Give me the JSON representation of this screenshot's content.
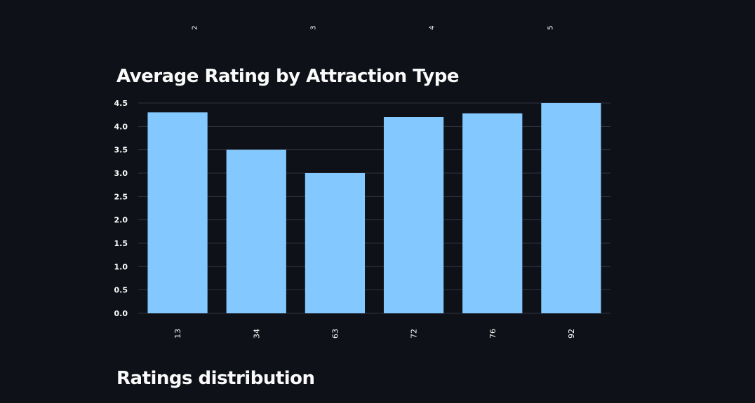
{
  "previous_chart": {
    "x_tick_labels": [
      "2",
      "3",
      "4",
      "5"
    ]
  },
  "headings": {
    "chart_title": "Average Rating by Attraction Type",
    "next_section": "Ratings distribution"
  },
  "chart_data": {
    "type": "bar",
    "categories": [
      "13",
      "34",
      "63",
      "72",
      "76",
      "92"
    ],
    "values": [
      4.3,
      3.5,
      3.0,
      4.2,
      4.28,
      4.5
    ],
    "title": "Average Rating by Attraction Type",
    "xlabel": "",
    "ylabel": "",
    "ylim": [
      0,
      4.5
    ],
    "yticks": [
      "0.0",
      "0.5",
      "1.0",
      "1.5",
      "2.0",
      "2.5",
      "3.0",
      "3.5",
      "4.0",
      "4.5"
    ],
    "grid": true,
    "bar_color": "#83c9ff",
    "grid_color": "#31333f"
  },
  "colors": {
    "background": "#0e1117",
    "text": "#fafafa"
  }
}
